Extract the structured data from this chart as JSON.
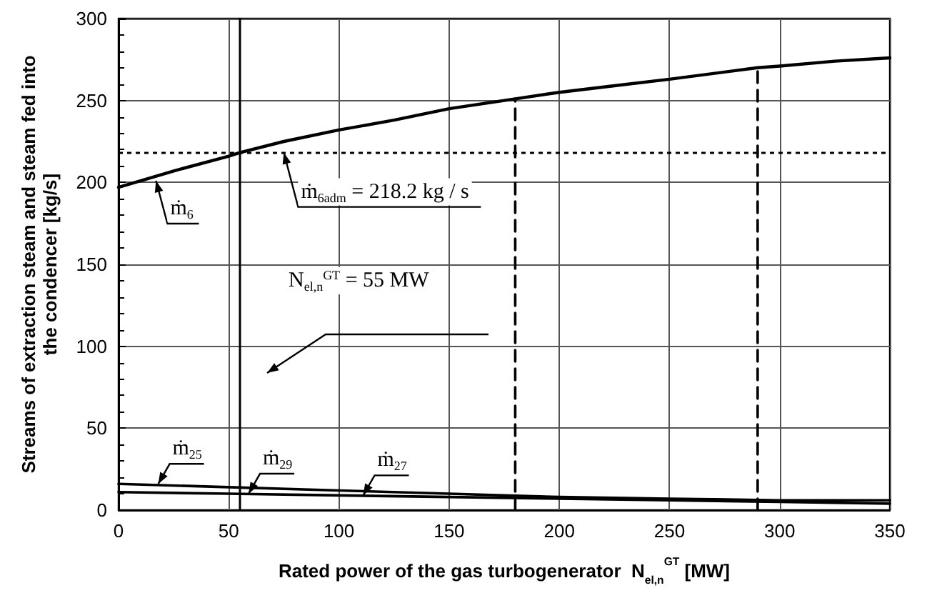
{
  "chart_data": {
    "type": "line",
    "xlabel": "Rated power of the gas turbogenerator  N$_{el,n}$$^{GT}$ [MW]",
    "ylabel": "Streams of extraction steam and steam fed into\nthe condencer [kg/s]",
    "xlim": [
      0,
      350
    ],
    "xticks": [
      0,
      50,
      100,
      150,
      200,
      250,
      300,
      350
    ],
    "ylim": [
      0,
      300
    ],
    "yticks": [
      0,
      50,
      100,
      150,
      200,
      250,
      300
    ],
    "grid": true,
    "marker": "none",
    "line_style": "solid",
    "series": [
      {
        "color": "#000000",
        "x": [
          0,
          25,
          50,
          55,
          75,
          100,
          125,
          150,
          180,
          200,
          225,
          250,
          290,
          300,
          325,
          350
        ],
        "values": [
          197,
          207,
          216,
          218.2,
          225,
          232,
          238,
          245,
          251,
          255,
          259,
          263,
          270,
          271,
          274,
          276
        ]
      },
      {
        "color": "#000000",
        "x": [
          0,
          50,
          100,
          150,
          200,
          250,
          300,
          350
        ],
        "values": [
          16,
          14,
          12,
          10,
          8,
          7,
          6,
          6
        ]
      },
      {
        "color": "#000000",
        "x": [
          0,
          50,
          100,
          150,
          200,
          250,
          300,
          350
        ],
        "values": [
          11,
          10,
          9,
          8,
          7,
          6,
          5,
          4
        ]
      },
      {
        "color": "#000000",
        "line_style": "dashed",
        "x": [
          180,
          180
        ],
        "values": [
          0,
          251
        ]
      },
      {
        "color": "#000000",
        "line_style": "dashed",
        "x": [
          290,
          290
        ],
        "values": [
          0,
          270
        ]
      }
    ],
    "ref_lines": [
      {
        "axis": "y",
        "value": 218.2,
        "line_style": "dotted",
        "color": "#000000"
      },
      {
        "axis": "x",
        "value": 55,
        "line_style": "solid",
        "color": "#000000"
      }
    ],
    "annotations": [
      {
        "text": "ṁ$_{6}$",
        "x": 17,
        "y": 201
      },
      {
        "text": "ṁ$_{6adm}$ = 218.2 kg / s",
        "x": 75,
        "y": 218.2
      },
      "N$_{el,n}$$^{GT}$ = 55 MW",
      {
        "text": "ṁ$_{25}$",
        "x": 18,
        "y": 16
      },
      {
        "text": "ṁ$_{29}$",
        "x": 59,
        "y": 10
      },
      {
        "text": "ṁ$_{27}$",
        "x": 111,
        "y": 9
      }
    ]
  }
}
